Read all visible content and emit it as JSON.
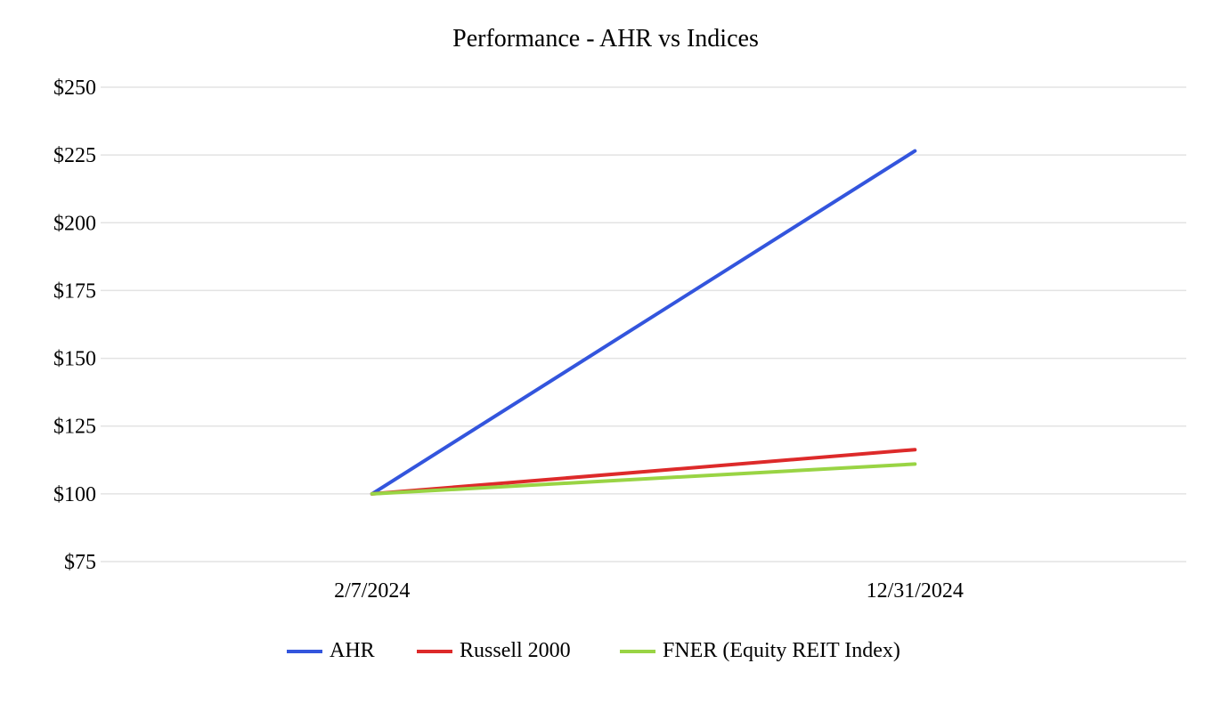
{
  "chart_data": {
    "type": "line",
    "title": "Performance - AHR vs Indices",
    "xlabel": "",
    "ylabel": "",
    "categories": [
      "2/7/2024",
      "12/31/2024"
    ],
    "ylim": [
      75,
      250
    ],
    "ytick_values": [
      75,
      100,
      125,
      150,
      175,
      200,
      225,
      250
    ],
    "ytick_labels": [
      "$75",
      "$100",
      "$125",
      "$150",
      "$175",
      "$200",
      "$225",
      "$250"
    ],
    "grid": true,
    "legend_position": "bottom",
    "series": [
      {
        "name": "AHR",
        "values": [
          100,
          226.5
        ],
        "color": "#3355dd"
      },
      {
        "name": "Russell 2000",
        "values": [
          100,
          116.3
        ],
        "color": "#dd2a2a"
      },
      {
        "name": "FNER (Equity REIT Index)",
        "values": [
          100,
          111.0
        ],
        "color": "#99d444"
      }
    ]
  }
}
